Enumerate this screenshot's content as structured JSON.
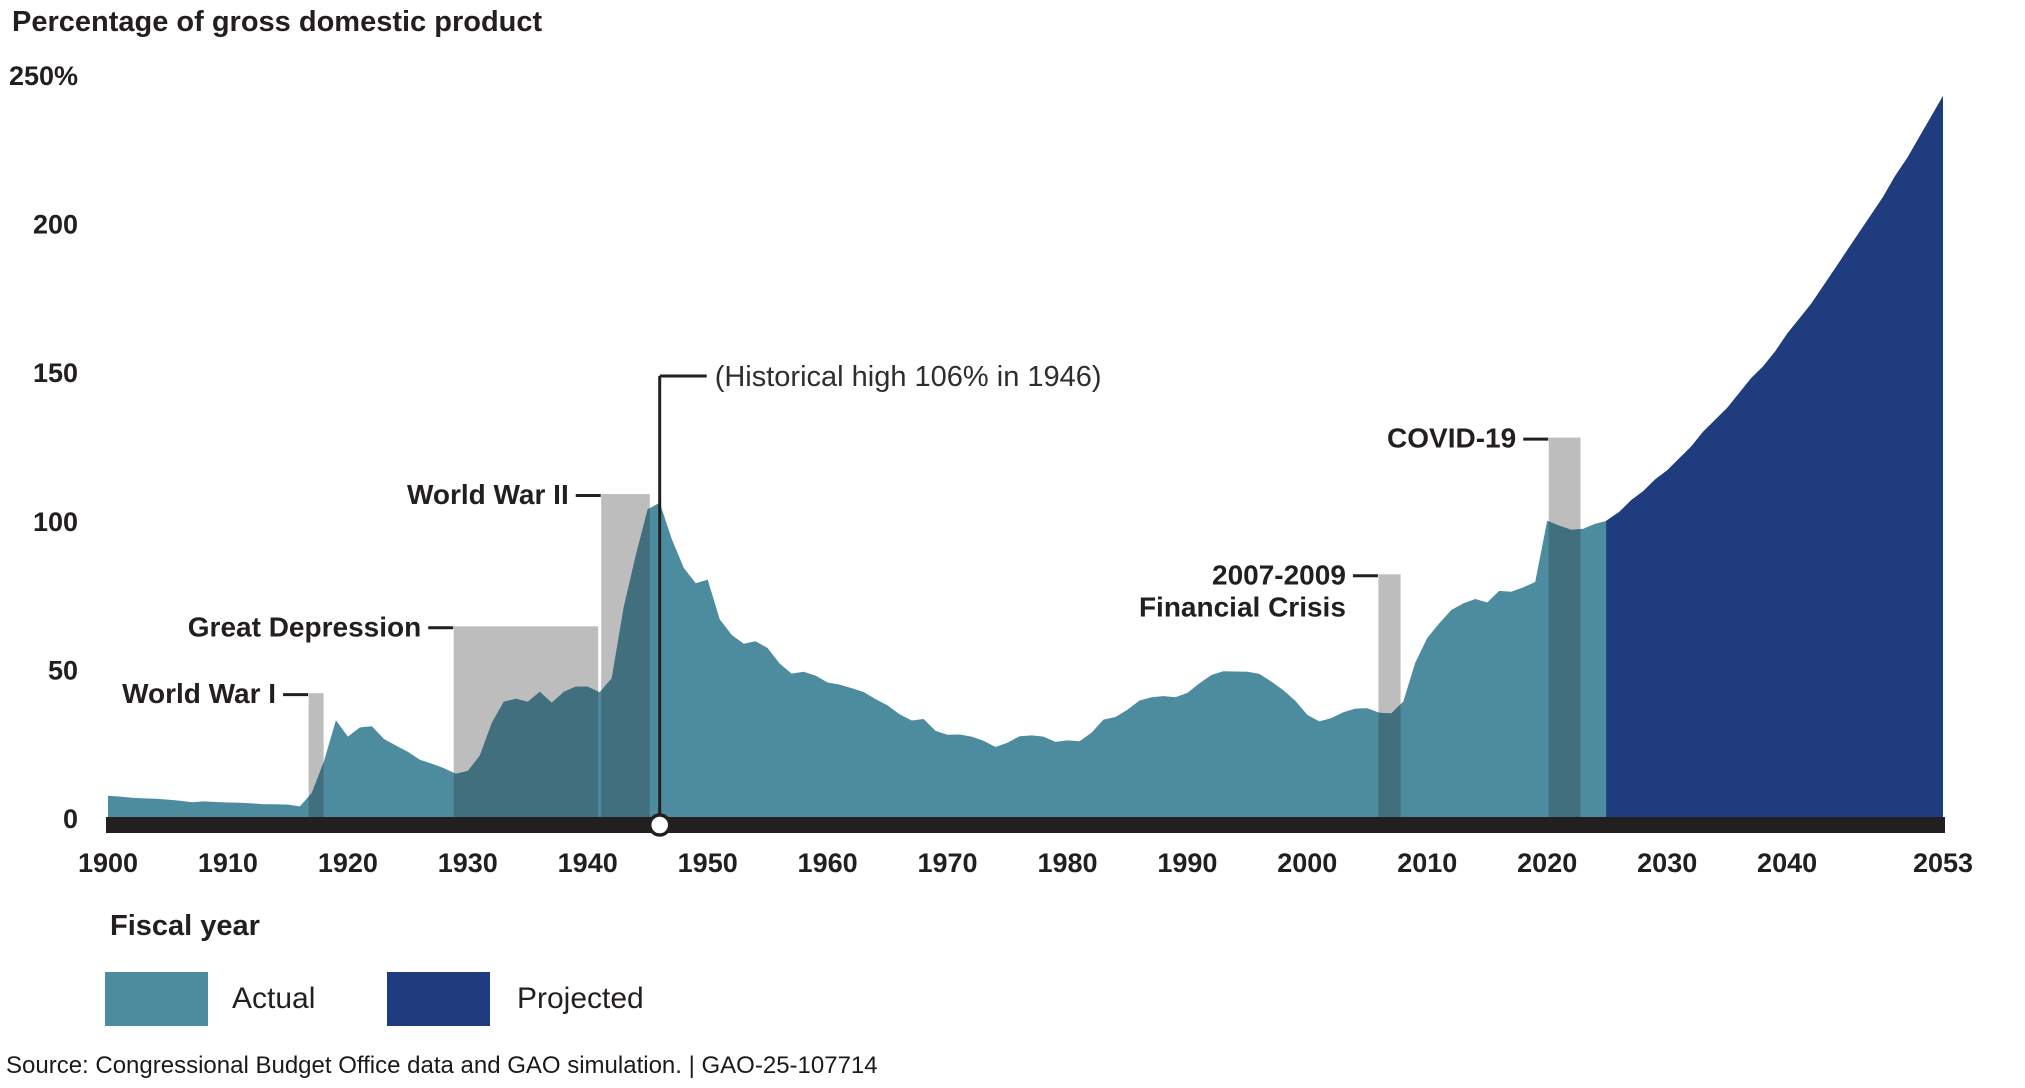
{
  "title": "Percentage of gross domestic product",
  "x_axis_title": "Fiscal year",
  "source_line": "Source: Congressional Budget Office data and GAO simulation.  |  GAO-25-107714",
  "legend": {
    "actual_label": "Actual",
    "projected_label": "Projected"
  },
  "colors": {
    "actual": "#4C8C9E",
    "projected": "#1E3C7E",
    "band": "#BDBDBD",
    "band_overlap": "#426F7E",
    "axis": "#231F20",
    "text": "#231F20",
    "background": "#FFFFFF"
  },
  "chart_data": {
    "type": "area",
    "title": "Percentage of gross domestic product",
    "xlabel": "Fiscal year",
    "ylabel": "Percentage of gross domestic product",
    "ylim": [
      0,
      250
    ],
    "xlim": [
      1900,
      2053
    ],
    "grid": false,
    "legend_position": "bottom-left",
    "y_ticks": [
      {
        "v": 250,
        "label": "250%"
      },
      {
        "v": 200,
        "label": "200"
      },
      {
        "v": 150,
        "label": "150"
      },
      {
        "v": 100,
        "label": "100"
      },
      {
        "v": 50,
        "label": "50"
      },
      {
        "v": 0,
        "label": "0"
      }
    ],
    "x_ticks": [
      1900,
      1910,
      1920,
      1930,
      1940,
      1950,
      1960,
      1970,
      1980,
      1990,
      2000,
      2010,
      2020,
      2030,
      2040,
      2053
    ],
    "series": [
      {
        "name": "Actual",
        "color_key": "actual",
        "points": [
          [
            1900,
            7.5
          ],
          [
            1901,
            7.2
          ],
          [
            1902,
            6.8
          ],
          [
            1903,
            6.6
          ],
          [
            1904,
            6.5
          ],
          [
            1905,
            6.2
          ],
          [
            1906,
            5.8
          ],
          [
            1907,
            5.3
          ],
          [
            1908,
            5.6
          ],
          [
            1909,
            5.4
          ],
          [
            1910,
            5.2
          ],
          [
            1911,
            5.1
          ],
          [
            1912,
            4.9
          ],
          [
            1913,
            4.6
          ],
          [
            1914,
            4.6
          ],
          [
            1915,
            4.5
          ],
          [
            1916,
            3.9
          ],
          [
            1917,
            8.5
          ],
          [
            1918,
            19.0
          ],
          [
            1919,
            32.9
          ],
          [
            1920,
            27.4
          ],
          [
            1921,
            30.5
          ],
          [
            1922,
            30.9
          ],
          [
            1923,
            26.6
          ],
          [
            1924,
            24.4
          ],
          [
            1925,
            22.3
          ],
          [
            1926,
            19.6
          ],
          [
            1927,
            18.3
          ],
          [
            1928,
            16.8
          ],
          [
            1929,
            14.9
          ],
          [
            1930,
            15.8
          ],
          [
            1931,
            21.0
          ],
          [
            1932,
            32.0
          ],
          [
            1933,
            39.1
          ],
          [
            1934,
            40.1
          ],
          [
            1935,
            39.1
          ],
          [
            1936,
            42.5
          ],
          [
            1937,
            38.8
          ],
          [
            1938,
            42.5
          ],
          [
            1939,
            44.2
          ],
          [
            1940,
            44.2
          ],
          [
            1941,
            42.3
          ],
          [
            1942,
            47.0
          ],
          [
            1943,
            70.9
          ],
          [
            1944,
            88.3
          ],
          [
            1945,
            103.9
          ],
          [
            1946,
            106.1
          ],
          [
            1947,
            93.9
          ],
          [
            1948,
            84.2
          ],
          [
            1949,
            79.0
          ],
          [
            1950,
            80.2
          ],
          [
            1951,
            66.9
          ],
          [
            1952,
            61.6
          ],
          [
            1953,
            58.6
          ],
          [
            1954,
            59.5
          ],
          [
            1955,
            57.2
          ],
          [
            1956,
            52.0
          ],
          [
            1957,
            48.6
          ],
          [
            1958,
            49.2
          ],
          [
            1959,
            47.9
          ],
          [
            1960,
            45.6
          ],
          [
            1961,
            44.9
          ],
          [
            1962,
            43.7
          ],
          [
            1963,
            42.4
          ],
          [
            1964,
            40.0
          ],
          [
            1965,
            37.9
          ],
          [
            1966,
            34.9
          ],
          [
            1967,
            32.8
          ],
          [
            1968,
            33.3
          ],
          [
            1969,
            29.3
          ],
          [
            1970,
            28.0
          ],
          [
            1971,
            28.1
          ],
          [
            1972,
            27.4
          ],
          [
            1973,
            26.0
          ],
          [
            1974,
            23.9
          ],
          [
            1975,
            25.3
          ],
          [
            1976,
            27.5
          ],
          [
            1977,
            27.8
          ],
          [
            1978,
            27.4
          ],
          [
            1979,
            25.6
          ],
          [
            1980,
            26.1
          ],
          [
            1981,
            25.8
          ],
          [
            1982,
            28.7
          ],
          [
            1983,
            33.1
          ],
          [
            1984,
            34.0
          ],
          [
            1985,
            36.4
          ],
          [
            1986,
            39.5
          ],
          [
            1987,
            40.6
          ],
          [
            1988,
            41.0
          ],
          [
            1989,
            40.6
          ],
          [
            1990,
            42.1
          ],
          [
            1991,
            45.3
          ],
          [
            1992,
            48.1
          ],
          [
            1993,
            49.4
          ],
          [
            1994,
            49.3
          ],
          [
            1995,
            49.2
          ],
          [
            1996,
            48.5
          ],
          [
            1997,
            45.9
          ],
          [
            1998,
            43.0
          ],
          [
            1999,
            39.4
          ],
          [
            2000,
            34.7
          ],
          [
            2001,
            32.5
          ],
          [
            2002,
            33.6
          ],
          [
            2003,
            35.6
          ],
          [
            2004,
            36.8
          ],
          [
            2005,
            36.9
          ],
          [
            2006,
            35.4
          ],
          [
            2007,
            35.2
          ],
          [
            2008,
            39.2
          ],
          [
            2009,
            52.3
          ],
          [
            2010,
            60.6
          ],
          [
            2011,
            65.5
          ],
          [
            2012,
            70.0
          ],
          [
            2013,
            72.2
          ],
          [
            2014,
            73.7
          ],
          [
            2015,
            72.5
          ],
          [
            2016,
            76.4
          ],
          [
            2017,
            76.1
          ],
          [
            2018,
            77.6
          ],
          [
            2019,
            79.4
          ],
          [
            2020,
            100.0
          ],
          [
            2021,
            98.4
          ],
          [
            2022,
            97.0
          ],
          [
            2023,
            97.3
          ],
          [
            2024,
            99.0
          ],
          [
            2025,
            100.0
          ]
        ]
      },
      {
        "name": "Projected",
        "color_key": "projected",
        "points": [
          [
            2025,
            100
          ],
          [
            2026,
            103
          ],
          [
            2027,
            107
          ],
          [
            2028,
            110
          ],
          [
            2029,
            114
          ],
          [
            2030,
            117
          ],
          [
            2031,
            121
          ],
          [
            2032,
            125
          ],
          [
            2033,
            130
          ],
          [
            2034,
            134
          ],
          [
            2035,
            138
          ],
          [
            2036,
            143
          ],
          [
            2037,
            148
          ],
          [
            2038,
            152
          ],
          [
            2039,
            157
          ],
          [
            2040,
            163
          ],
          [
            2041,
            168
          ],
          [
            2042,
            173
          ],
          [
            2043,
            179
          ],
          [
            2044,
            185
          ],
          [
            2045,
            191
          ],
          [
            2046,
            197
          ],
          [
            2047,
            203
          ],
          [
            2048,
            209
          ],
          [
            2049,
            216
          ],
          [
            2050,
            222
          ],
          [
            2051,
            229
          ],
          [
            2052,
            236
          ],
          [
            2053,
            243
          ]
        ]
      }
    ],
    "event_bands": [
      {
        "label": "World War I",
        "label_lines": [
          "World War I"
        ],
        "from": 1916.6,
        "to": 1918.1,
        "top": 42
      },
      {
        "label": "Great Depression",
        "label_lines": [
          "Great Depression"
        ],
        "from": 1928.7,
        "to": 1941.0,
        "top": 64.5
      },
      {
        "label": "World War II",
        "label_lines": [
          "World War II"
        ],
        "from": 1941.0,
        "to": 1945.3,
        "top": 109
      },
      {
        "label": "2007-2009 Financial Crisis",
        "label_lines": [
          "2007-2009",
          "Financial Crisis"
        ],
        "from": 2005.8,
        "to": 2007.9,
        "top": 82
      },
      {
        "label": "COVID-19",
        "label_lines": [
          "COVID-19"
        ],
        "from": 2020.0,
        "to": 2022.9,
        "top": 128
      }
    ],
    "callout": {
      "text": "(Historical high 106% in 1946)",
      "year": 1946,
      "value": 106
    }
  }
}
